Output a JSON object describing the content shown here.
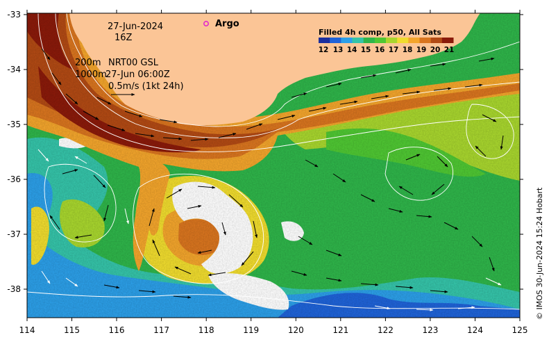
{
  "map": {
    "date": "27-Jun-2024",
    "hour": "16Z",
    "depth_shallow": "200m",
    "depth_deep": "1000m",
    "product": "NRT00 GSL",
    "product_time": "27-Jun 06:00Z",
    "scale_label": "0.5m/s (1kt 24h)",
    "argo_label": "Argo",
    "credit": "© IMOS 30-Jun-2024 15:24 Hobart",
    "lon_ticks": [
      "114",
      "115",
      "116",
      "117",
      "118",
      "119",
      "120",
      "121",
      "122",
      "123",
      "124",
      "125"
    ],
    "lat_ticks": [
      "-33",
      "-34",
      "-35",
      "-36",
      "-37",
      "-38"
    ],
    "legend": {
      "title": "Filled 4h comp, p50, All Sats",
      "labels": [
        "12",
        "13",
        "14",
        "15",
        "16",
        "17",
        "18",
        "19",
        "20",
        "21"
      ],
      "colors": [
        "#1b2f9e",
        "#1f63d8",
        "#2c9fe8",
        "#35c4a9",
        "#2fb54a",
        "#4fc733",
        "#a8d62e",
        "#f0dc2e",
        "#f3a52c",
        "#d9751f",
        "#b24a14",
        "#8a1a0a"
      ]
    },
    "colors": {
      "land": "#fbc596",
      "argo": "#e020d0",
      "missing": "#ffffff"
    }
  }
}
